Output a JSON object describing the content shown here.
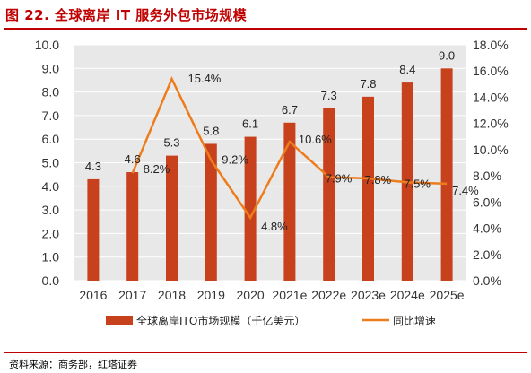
{
  "header": {
    "title": "图 22. 全球离岸 IT 服务外包市场规模"
  },
  "footer": {
    "source": "资料来源：商务部，红塔证券"
  },
  "chart_data": {
    "type": "bar",
    "categories": [
      "2016",
      "2017",
      "2018",
      "2019",
      "2020",
      "2021e",
      "2022e",
      "2023e",
      "2024e",
      "2025e"
    ],
    "series": [
      {
        "name": "全球离岸ITO市场规模（千亿美元）",
        "type": "bar",
        "axis": "left",
        "color": "#c8411d",
        "values": [
          4.3,
          4.6,
          5.3,
          5.8,
          6.1,
          6.7,
          7.3,
          7.8,
          8.4,
          9.0
        ],
        "labels": [
          "4.3",
          "4.6",
          "5.3",
          "5.8",
          "6.1",
          "6.7",
          "7.3",
          "7.8",
          "8.4",
          "9.0"
        ]
      },
      {
        "name": "同比增速",
        "type": "line",
        "axis": "right",
        "color": "#ed7d1c",
        "values": [
          null,
          8.2,
          15.4,
          9.2,
          4.8,
          10.6,
          7.9,
          7.8,
          7.5,
          7.4
        ],
        "labels": [
          "",
          "8.2%",
          "15.4%",
          "9.2%",
          "4.8%",
          "10.6%",
          "7.9%",
          "7.8%",
          "7.5%",
          "7.4%"
        ]
      }
    ],
    "y_left": {
      "lim": [
        0,
        10
      ],
      "ticks": [
        "0.0",
        "1.0",
        "2.0",
        "3.0",
        "4.0",
        "5.0",
        "6.0",
        "7.0",
        "8.0",
        "9.0",
        "10.0"
      ]
    },
    "y_right": {
      "lim": [
        0,
        18
      ],
      "ticks": [
        "0.0%",
        "2.0%",
        "4.0%",
        "6.0%",
        "8.0%",
        "10.0%",
        "12.0%",
        "14.0%",
        "16.0%",
        "18.0%"
      ]
    },
    "grid": true,
    "legend": "bottom"
  }
}
